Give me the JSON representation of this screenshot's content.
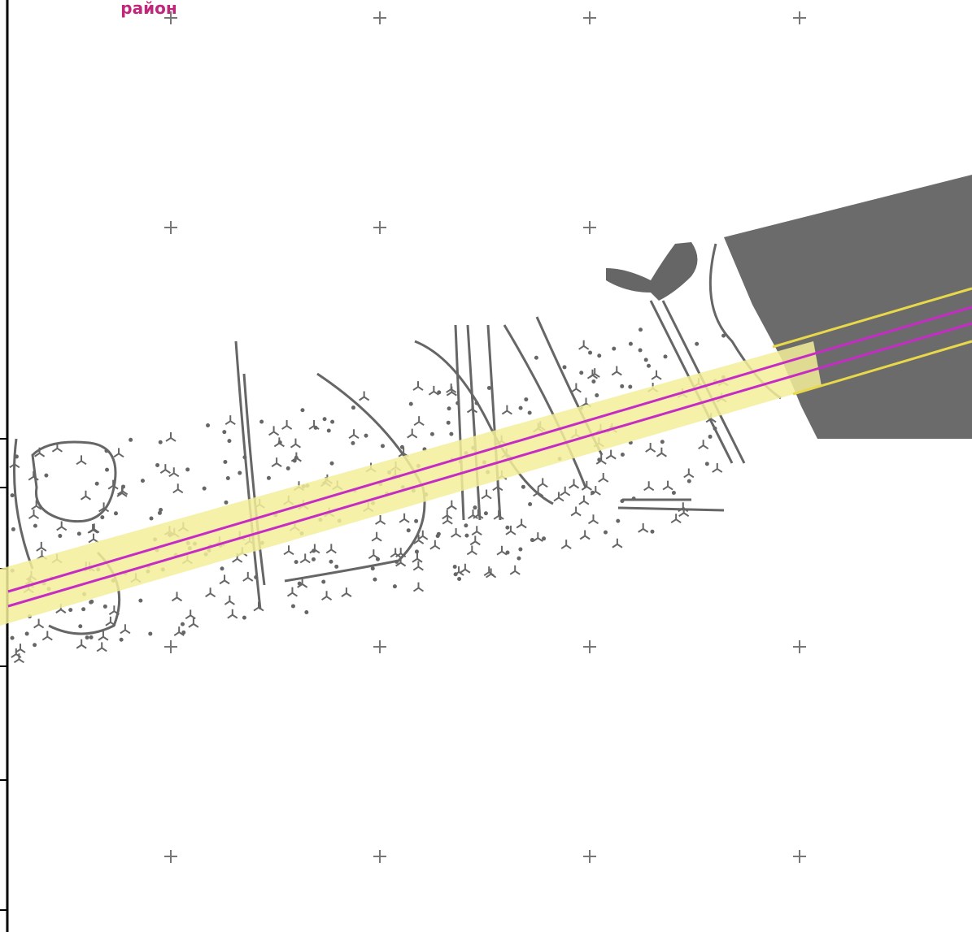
{
  "labels": {
    "district": "район"
  }
}
